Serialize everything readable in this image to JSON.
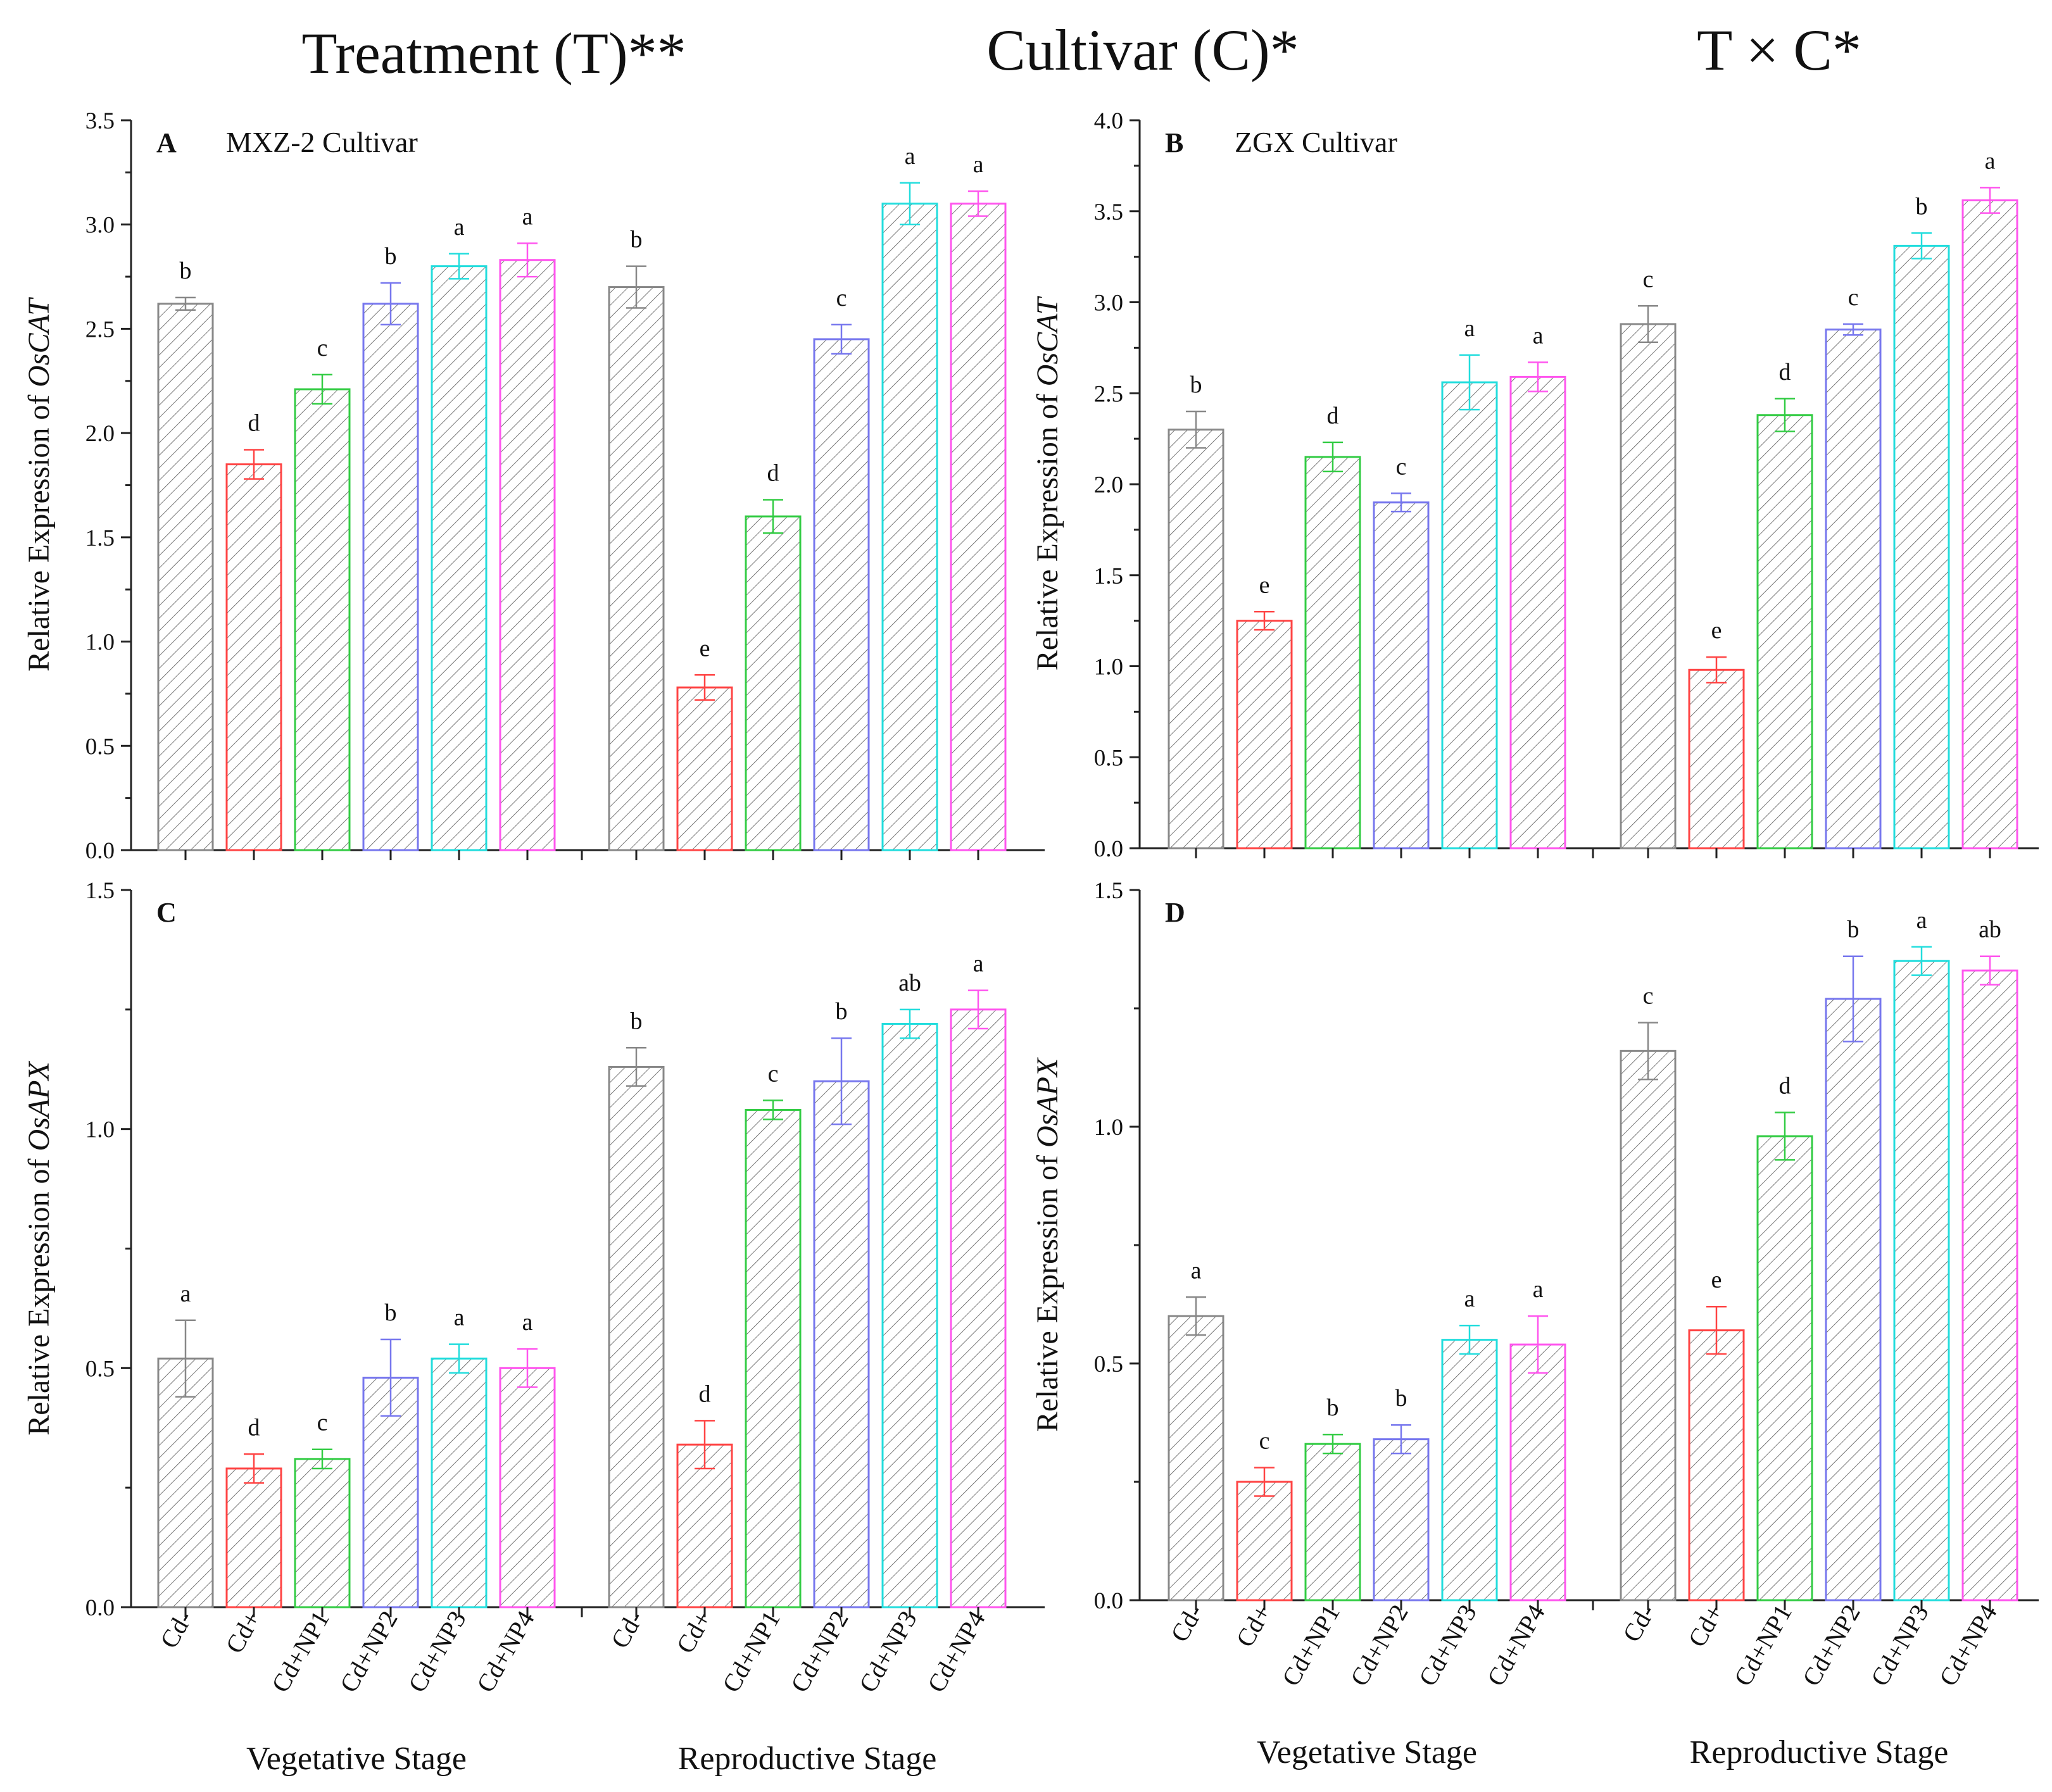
{
  "header": {
    "treatment": "Treatment (T)**",
    "cultivar": "Cultivar (C)*",
    "interaction": "T × C*"
  },
  "colors": [
    "#888888",
    "#ff4444",
    "#33cc44",
    "#7777ee",
    "#22dddd",
    "#ff55ee"
  ],
  "chart_data": [
    {
      "id": "A",
      "type": "bar",
      "panel_letter": "A",
      "cultivar_label": "MXZ-2  Cultivar",
      "ylabel_prefix": "Relative Expression of ",
      "ylabel_gene": "OsCAT",
      "ylim": [
        0,
        3.5
      ],
      "yticks": [
        "0.0",
        "0.5",
        "1.0",
        "1.5",
        "2.0",
        "2.5",
        "3.0",
        "3.5"
      ],
      "groups": [
        {
          "stage": "Vegetative Stage",
          "categories": [
            "Cd-",
            "Cd+",
            "Cd+NP1",
            "Cd+NP2",
            "Cd+NP3",
            "Cd+NP4"
          ],
          "values": [
            2.62,
            1.85,
            2.21,
            2.62,
            2.8,
            2.83
          ],
          "errors": [
            0.03,
            0.07,
            0.07,
            0.1,
            0.06,
            0.08
          ],
          "letters": [
            "b",
            "d",
            "c",
            "b",
            "a",
            "a"
          ]
        },
        {
          "stage": "Reproductive Stage",
          "categories": [
            "Cd-",
            "Cd+",
            "Cd+NP1",
            "Cd+NP2",
            "Cd+NP3",
            "Cd+NP4"
          ],
          "values": [
            2.7,
            0.78,
            1.6,
            2.45,
            3.1,
            3.1
          ],
          "errors": [
            0.1,
            0.06,
            0.08,
            0.07,
            0.1,
            0.06
          ],
          "letters": [
            "b",
            "e",
            "d",
            "c",
            "a",
            "a"
          ]
        }
      ]
    },
    {
      "id": "B",
      "type": "bar",
      "panel_letter": "B",
      "cultivar_label": "ZGX Cultivar",
      "ylabel_prefix": "Relative Expression of ",
      "ylabel_gene": "OsCAT",
      "ylim": [
        0,
        4.0
      ],
      "yticks": [
        "0.0",
        "0.5",
        "1.0",
        "1.5",
        "2.0",
        "2.5",
        "3.0",
        "3.5",
        "4.0"
      ],
      "groups": [
        {
          "stage": "Vegetative Stage",
          "categories": [
            "Cd-",
            "Cd+",
            "Cd+NP1",
            "Cd+NP2",
            "Cd+NP3",
            "Cd+NP4"
          ],
          "values": [
            2.3,
            1.25,
            2.15,
            1.9,
            2.56,
            2.59
          ],
          "errors": [
            0.1,
            0.05,
            0.08,
            0.05,
            0.15,
            0.08
          ],
          "letters": [
            "b",
            "e",
            "d",
            "c",
            "a",
            "a"
          ]
        },
        {
          "stage": "Reproductive Stage",
          "categories": [
            "Cd-",
            "Cd+",
            "Cd+NP1",
            "Cd+NP2",
            "Cd+NP3",
            "Cd+NP4"
          ],
          "values": [
            2.88,
            0.98,
            2.38,
            2.85,
            3.31,
            3.56
          ],
          "errors": [
            0.1,
            0.07,
            0.09,
            0.03,
            0.07,
            0.07
          ],
          "letters": [
            "c",
            "e",
            "d",
            "c",
            "b",
            "a"
          ]
        }
      ]
    },
    {
      "id": "C",
      "type": "bar",
      "panel_letter": "C",
      "cultivar_label": "",
      "ylabel_prefix": "Relative Expression of ",
      "ylabel_gene": "OsAPX",
      "ylim": [
        0,
        1.5
      ],
      "yticks": [
        "0.0",
        "0.5",
        "1.0",
        "1.5"
      ],
      "groups": [
        {
          "stage": "Vegetative Stage",
          "categories": [
            "Cd-",
            "Cd+",
            "Cd+NP1",
            "Cd+NP2",
            "Cd+NP3",
            "Cd+NP4"
          ],
          "values": [
            0.52,
            0.29,
            0.31,
            0.48,
            0.52,
            0.5
          ],
          "errors": [
            0.08,
            0.03,
            0.02,
            0.08,
            0.03,
            0.04
          ],
          "letters": [
            "a",
            "d",
            "c",
            "b",
            "a",
            "a"
          ]
        },
        {
          "stage": "Reproductive Stage",
          "categories": [
            "Cd-",
            "Cd+",
            "Cd+NP1",
            "Cd+NP2",
            "Cd+NP3",
            "Cd+NP4"
          ],
          "values": [
            1.13,
            0.34,
            1.04,
            1.1,
            1.22,
            1.25
          ],
          "errors": [
            0.04,
            0.05,
            0.02,
            0.09,
            0.03,
            0.04
          ],
          "letters": [
            "b",
            "d",
            "c",
            "b",
            "ab",
            "a"
          ]
        }
      ]
    },
    {
      "id": "D",
      "type": "bar",
      "panel_letter": "D",
      "cultivar_label": "",
      "ylabel_prefix": "Relative Expression of ",
      "ylabel_gene": "OsAPX",
      "ylim": [
        0,
        1.5
      ],
      "yticks": [
        "0.0",
        "0.5",
        "1.0",
        "1.5"
      ],
      "groups": [
        {
          "stage": "Vegetative Stage",
          "categories": [
            "Cd-",
            "Cd+",
            "Cd+NP1",
            "Cd+NP2",
            "Cd+NP3",
            "Cd+NP4"
          ],
          "values": [
            0.6,
            0.25,
            0.33,
            0.34,
            0.55,
            0.54
          ],
          "errors": [
            0.04,
            0.03,
            0.02,
            0.03,
            0.03,
            0.06
          ],
          "letters": [
            "a",
            "c",
            "b",
            "b",
            "a",
            "a"
          ]
        },
        {
          "stage": "Reproductive Stage",
          "categories": [
            "Cd-",
            "Cd+",
            "Cd+NP1",
            "Cd+NP2",
            "Cd+NP3",
            "Cd+NP4"
          ],
          "values": [
            1.16,
            0.57,
            0.98,
            1.27,
            1.35,
            1.33
          ],
          "errors": [
            0.06,
            0.05,
            0.05,
            0.09,
            0.03,
            0.03
          ],
          "letters": [
            "c",
            "e",
            "d",
            "b",
            "a",
            "ab"
          ]
        }
      ]
    }
  ]
}
